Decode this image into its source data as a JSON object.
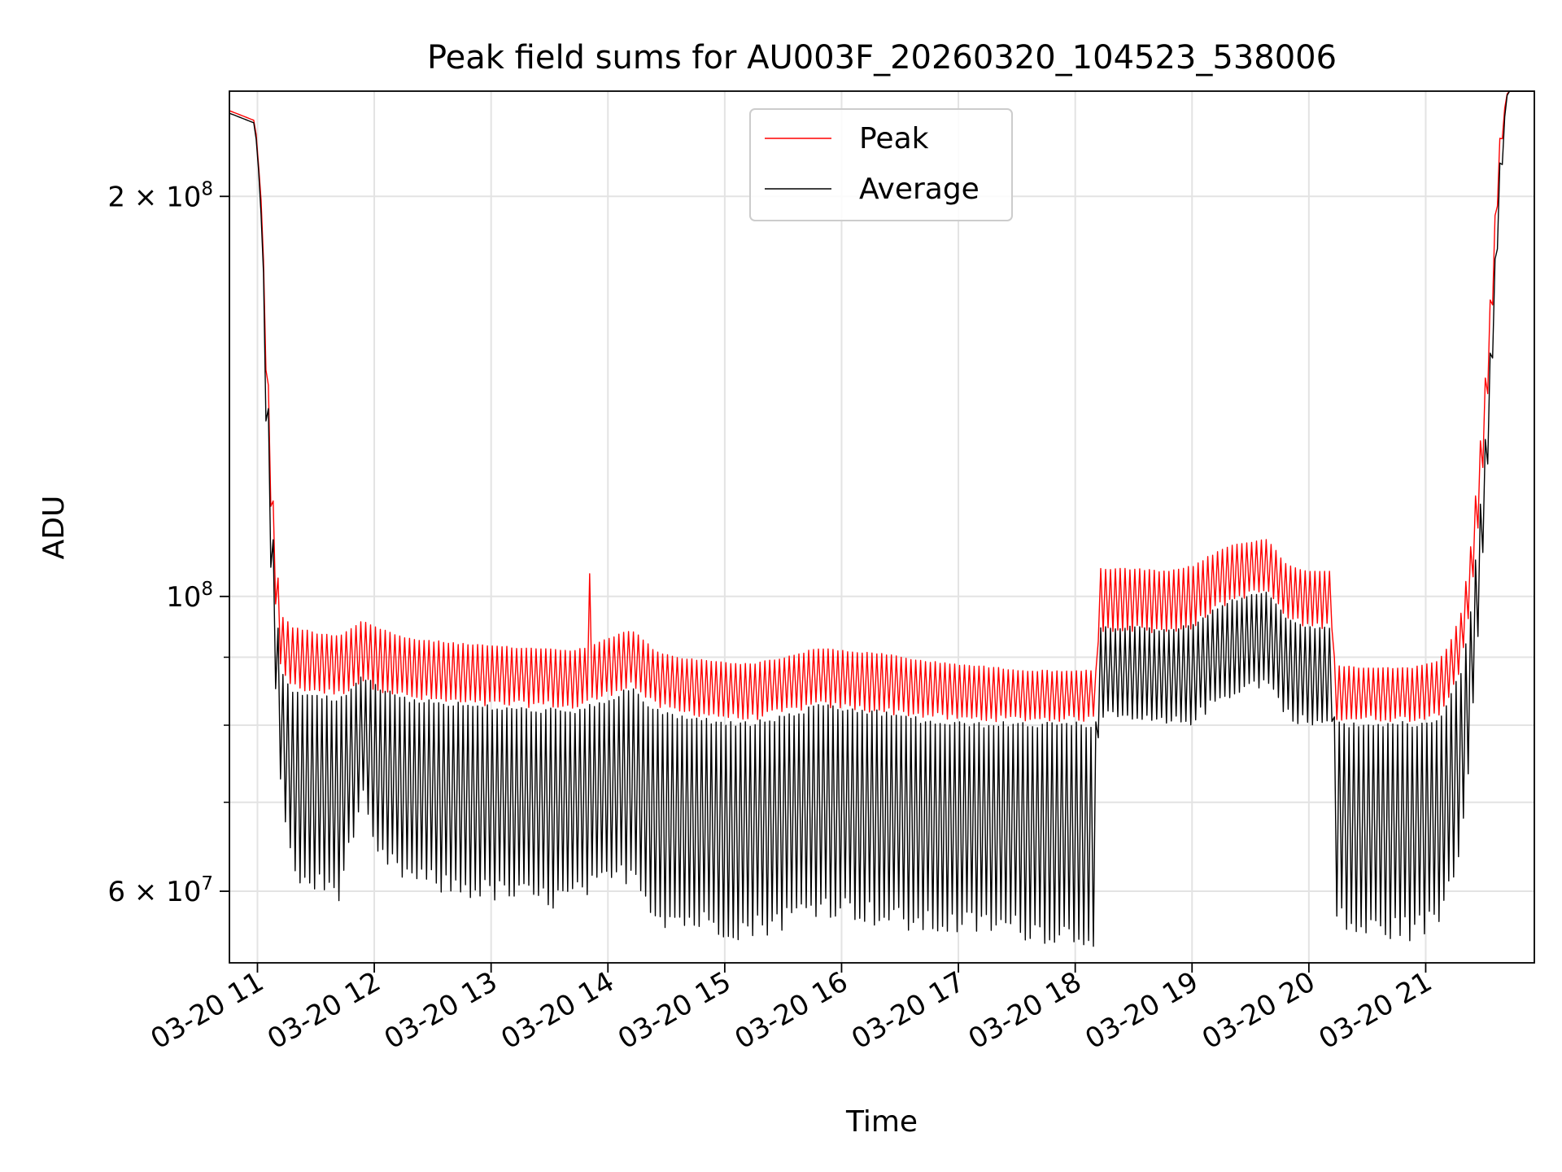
{
  "chart_data": {
    "type": "line",
    "title": "Peak field sums for AU003F_20260320_104523_538006",
    "xlabel": "Time",
    "ylabel": "ADU",
    "yscale": "log",
    "ylim": [
      53000000,
      240000000
    ],
    "xlim_hours": [
      10.76,
      21.93
    ],
    "grid": true,
    "legend_position": "top-center",
    "x_ticks": [
      {
        "value": 11,
        "label": "03-20 11"
      },
      {
        "value": 12,
        "label": "03-20 12"
      },
      {
        "value": 13,
        "label": "03-20 13"
      },
      {
        "value": 14,
        "label": "03-20 14"
      },
      {
        "value": 15,
        "label": "03-20 15"
      },
      {
        "value": 16,
        "label": "03-20 16"
      },
      {
        "value": 17,
        "label": "03-20 17"
      },
      {
        "value": 18,
        "label": "03-20 18"
      },
      {
        "value": 19,
        "label": "03-20 19"
      },
      {
        "value": 20,
        "label": "03-20 20"
      },
      {
        "value": 21,
        "label": "03-20 21"
      }
    ],
    "y_ticks_major": [
      {
        "value": 100000000,
        "base": "10",
        "exp": "8"
      },
      {
        "value": 200000000,
        "base": "2 × 10",
        "exp": "8"
      },
      {
        "value": 60000000,
        "base": "6 × 10",
        "exp": "7"
      }
    ],
    "y_ticks_minor": [
      70000000,
      80000000,
      90000000,
      300000000
    ],
    "series": [
      {
        "name": "Peak",
        "color": "#ff0000",
        "envelope_hours": [
          10.76,
          10.98,
          11.03,
          11.08,
          11.12,
          11.16,
          11.2,
          11.3,
          11.5,
          11.7,
          11.9,
          12.0,
          12.3,
          12.6,
          12.9,
          13.3,
          13.5,
          13.7,
          14.0,
          14.2,
          14.3,
          14.4,
          14.6,
          14.9,
          15.2,
          15.5,
          15.8,
          16.1,
          16.4,
          16.7,
          17.0,
          17.3,
          17.6,
          17.9,
          18.18,
          18.2,
          18.5,
          18.8,
          19.0,
          19.2,
          19.35,
          19.5,
          19.65,
          19.8,
          20.0,
          20.2,
          20.22,
          20.4,
          20.6,
          20.9,
          21.1,
          21.2,
          21.3,
          21.38,
          21.45,
          21.52,
          21.58,
          21.63,
          21.7,
          21.93
        ],
        "envelope_top": [
          232000000,
          228000000,
          200000000,
          155000000,
          125000000,
          108000000,
          97000000,
          95000000,
          94000000,
          93500000,
          96000000,
          95000000,
          93000000,
          92500000,
          92000000,
          91500000,
          91500000,
          91000000,
          93000000,
          94500000,
          93000000,
          91000000,
          90000000,
          89500000,
          89000000,
          90000000,
          91500000,
          91000000,
          90500000,
          89500000,
          89000000,
          88500000,
          88000000,
          88000000,
          88000000,
          105000000,
          105000000,
          104500000,
          105500000,
          108000000,
          109500000,
          110000000,
          110500000,
          106000000,
          104500000,
          104500000,
          89000000,
          88500000,
          88500000,
          88500000,
          89500000,
          92000000,
          97000000,
          108000000,
          125000000,
          150000000,
          185000000,
          220000000,
          240000000,
          240000000
        ],
        "envelope_bottom": [
          232000000,
          228000000,
          200000000,
          140000000,
          112000000,
          96000000,
          88000000,
          85000000,
          84500000,
          84000000,
          86000000,
          85000000,
          83500000,
          83000000,
          82500000,
          82500000,
          82500000,
          82000000,
          84000000,
          85500000,
          84000000,
          82500000,
          81500000,
          81000000,
          80500000,
          81500000,
          82500000,
          82000000,
          81500000,
          81000000,
          80500000,
          80500000,
          80500000,
          80500000,
          80500000,
          94000000,
          94000000,
          93500000,
          94500000,
          97500000,
          99000000,
          100000000,
          100500000,
          96000000,
          94500000,
          94500000,
          80500000,
          80500000,
          80500000,
          80500000,
          81000000,
          84000000,
          88000000,
          97000000,
          112000000,
          135000000,
          170000000,
          210000000,
          240000000,
          240000000
        ],
        "spike": {
          "hour": 13.85,
          "value": 104000000
        }
      },
      {
        "name": "Average",
        "color": "#000000",
        "envelope_hours": [
          10.76,
          10.98,
          11.03,
          11.08,
          11.12,
          11.16,
          11.2,
          11.3,
          11.5,
          11.7,
          11.9,
          12.0,
          12.3,
          12.6,
          12.9,
          13.3,
          13.5,
          13.7,
          14.0,
          14.2,
          14.3,
          14.4,
          14.6,
          14.9,
          15.2,
          15.5,
          15.8,
          16.1,
          16.4,
          16.7,
          17.0,
          17.3,
          17.6,
          17.9,
          18.18,
          18.2,
          18.5,
          18.8,
          19.0,
          19.2,
          19.35,
          19.5,
          19.65,
          19.8,
          20.0,
          20.2,
          20.22,
          20.4,
          20.6,
          20.9,
          21.1,
          21.2,
          21.3,
          21.38,
          21.45,
          21.52,
          21.58,
          21.63,
          21.7,
          21.93
        ],
        "envelope_top": [
          231000000,
          227000000,
          198000000,
          150000000,
          118000000,
          100000000,
          88000000,
          85000000,
          84500000,
          84000000,
          87500000,
          86000000,
          84000000,
          83500000,
          83000000,
          82500000,
          82500000,
          82000000,
          84000000,
          85500000,
          84000000,
          82500000,
          81500000,
          81000000,
          80500000,
          81500000,
          83000000,
          82500000,
          82000000,
          81000000,
          80500000,
          80500000,
          80500000,
          80500000,
          80500000,
          95000000,
          95000000,
          94500000,
          95500000,
          98000000,
          99500000,
          100500000,
          101000000,
          96500000,
          95000000,
          95000000,
          80500000,
          80500000,
          80500000,
          80500000,
          81000000,
          84000000,
          88000000,
          97000000,
          112000000,
          135000000,
          170000000,
          210000000,
          240000000,
          240000000
        ],
        "envelope_bottom": [
          231000000,
          227000000,
          195000000,
          125000000,
          100000000,
          82000000,
          72000000,
          60500000,
          59500000,
          59000000,
          70000000,
          63000000,
          60500000,
          59500000,
          59000000,
          58500000,
          58000000,
          58500000,
          60000000,
          61000000,
          59500000,
          56500000,
          56000000,
          55500000,
          55000000,
          56000000,
          57500000,
          57000000,
          56000000,
          55500000,
          55500000,
          55500000,
          55000000,
          54500000,
          54500000,
          80500000,
          80000000,
          79500000,
          80000000,
          82500000,
          84000000,
          85000000,
          85500000,
          81000000,
          79500000,
          79500000,
          56500000,
          55000000,
          55000000,
          55000000,
          56000000,
          59500000,
          64000000,
          76000000,
          94000000,
          120000000,
          155000000,
          195000000,
          240000000,
          240000000
        ]
      }
    ]
  }
}
